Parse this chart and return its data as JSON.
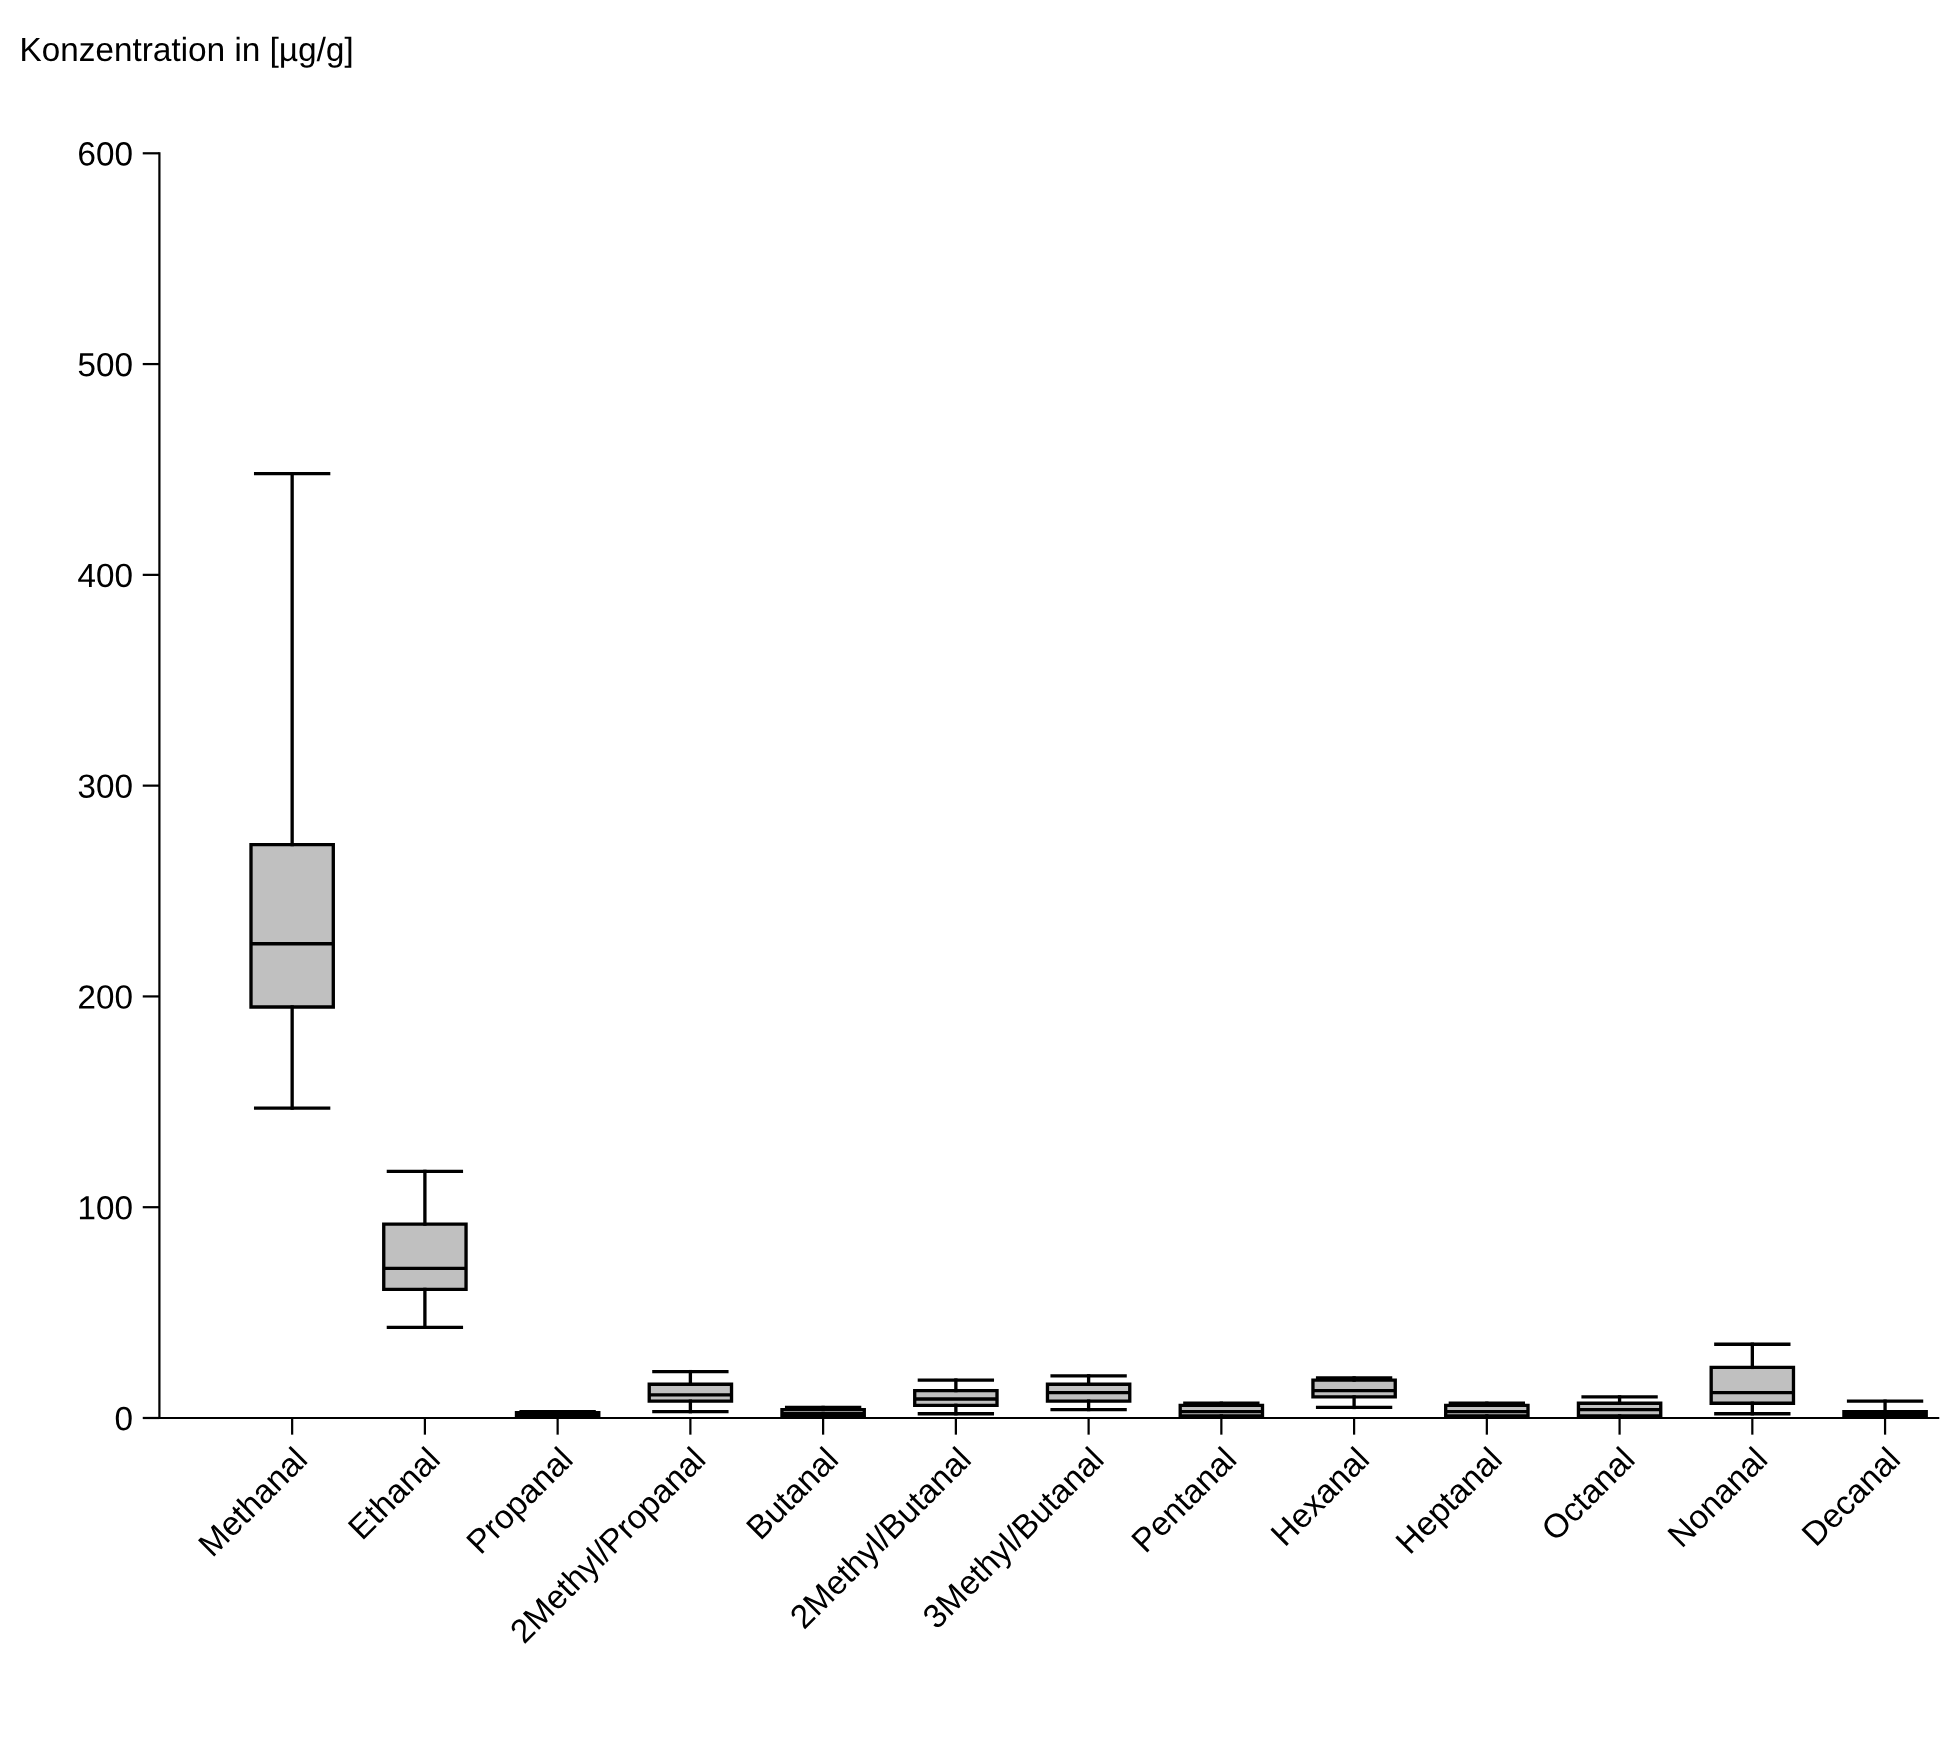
{
  "chart_data": {
    "type": "box",
    "ylabel": "Konzentration in [µg/g]",
    "categories": [
      "Methanal",
      "Ethanal",
      "Propanal",
      "2Methyl/Propanal",
      "Butanal",
      "2Methyl/Butanal",
      "3Methyl/Butanal",
      "Pentanal",
      "Hexanal",
      "Heptanal",
      "Octanal",
      "Nonanal",
      "Decanal"
    ],
    "boxes": [
      {
        "low": 147,
        "q1": 195,
        "median": 225,
        "q3": 272,
        "high": 448
      },
      {
        "low": 43,
        "q1": 61,
        "median": 71,
        "q3": 92,
        "high": 117
      },
      {
        "low": 0.5,
        "q1": 1,
        "median": 1.5,
        "q3": 2.5,
        "high": 3
      },
      {
        "low": 3,
        "q1": 8,
        "median": 11,
        "q3": 16,
        "high": 22
      },
      {
        "low": 0.5,
        "q1": 1,
        "median": 2,
        "q3": 4,
        "high": 5
      },
      {
        "low": 2,
        "q1": 6,
        "median": 9,
        "q3": 13,
        "high": 18
      },
      {
        "low": 4,
        "q1": 8,
        "median": 12,
        "q3": 16,
        "high": 20
      },
      {
        "low": 0.5,
        "q1": 1,
        "median": 3,
        "q3": 6,
        "high": 7
      },
      {
        "low": 5,
        "q1": 10,
        "median": 13,
        "q3": 18,
        "high": 19
      },
      {
        "low": 0.5,
        "q1": 1,
        "median": 3,
        "q3": 6,
        "high": 7
      },
      {
        "low": 0.5,
        "q1": 1,
        "median": 4,
        "q3": 7,
        "high": 10
      },
      {
        "low": 2,
        "q1": 7,
        "median": 12,
        "q3": 24,
        "high": 35
      },
      {
        "low": 0.5,
        "q1": 1,
        "median": 2,
        "q3": 3,
        "high": 8
      }
    ],
    "color": "#c0c0c0",
    "ylim": [
      0,
      600
    ],
    "yticks": [
      0,
      100,
      200,
      300,
      400,
      500,
      600
    ],
    "grid": false
  }
}
